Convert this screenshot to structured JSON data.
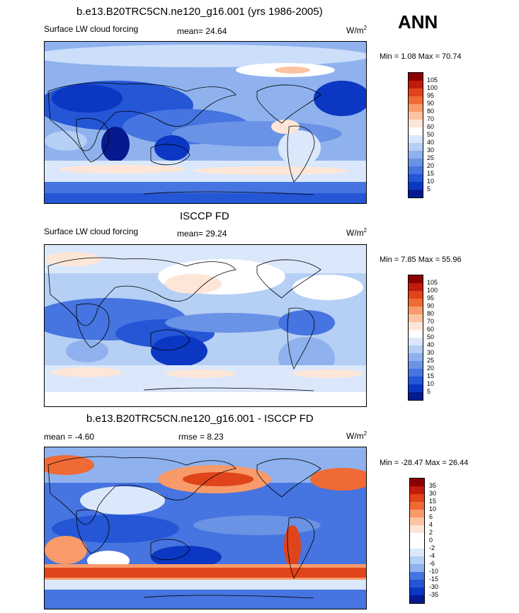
{
  "season": "ANN",
  "panels": [
    {
      "title": "b.e13.B20TRC5CN.ne120_g16.001 (yrs 1986-2005)",
      "left_label": "Surface LW cloud forcing",
      "mid_label": "mean=  24.64",
      "units_base": "W/m",
      "units_exp": "2",
      "minmax": "Min =   1.08 Max =  70.74",
      "levels": [
        "105",
        "100",
        "95",
        "90",
        "80",
        "70",
        "60",
        "50",
        "40",
        "30",
        "25",
        "20",
        "15",
        "10",
        "5"
      ],
      "colors": [
        "#8b0000",
        "#c21b0c",
        "#e0441a",
        "#f06a35",
        "#f89a6a",
        "#fcc3a2",
        "#fde6d8",
        "#ffffff",
        "#dbe8fb",
        "#b5cff5",
        "#8fb2ee",
        "#6a93e6",
        "#4674e0",
        "#2456d6",
        "#0b37c2",
        "#061a8f"
      ]
    },
    {
      "title": "ISCCP FD",
      "left_label": "Surface LW cloud forcing",
      "mid_label": "mean=  29.24",
      "units_base": "W/m",
      "units_exp": "2",
      "minmax": "Min =   7.85 Max =  55.96",
      "levels": [
        "105",
        "100",
        "95",
        "90",
        "80",
        "70",
        "60",
        "50",
        "40",
        "30",
        "25",
        "20",
        "15",
        "10",
        "5"
      ],
      "colors": [
        "#8b0000",
        "#c21b0c",
        "#e0441a",
        "#f06a35",
        "#f89a6a",
        "#fcc3a2",
        "#fde6d8",
        "#ffffff",
        "#dbe8fb",
        "#b5cff5",
        "#8fb2ee",
        "#6a93e6",
        "#4674e0",
        "#2456d6",
        "#0b37c2",
        "#061a8f"
      ]
    },
    {
      "title": "b.e13.B20TRC5CN.ne120_g16.001 - ISCCP FD",
      "left_label": "mean =  -4.60",
      "mid_label": "rmse =   8.23",
      "units_base": "W/m",
      "units_exp": "2",
      "minmax": "Min = -28.47 Max =  26.44",
      "levels": [
        "35",
        "30",
        "15",
        "10",
        "6",
        "4",
        "2",
        "0",
        "-2",
        "-4",
        "-6",
        "-10",
        "-15",
        "-30",
        "-35"
      ],
      "colors": [
        "#8b0000",
        "#c21b0c",
        "#e0441a",
        "#f06a35",
        "#f89a6a",
        "#fcc3a2",
        "#fde6d8",
        "#ffffff",
        "#ffffff",
        "#dbe8fb",
        "#b5cff5",
        "#8fb2ee",
        "#4674e0",
        "#2456d6",
        "#0b37c2",
        "#061a8f"
      ]
    }
  ]
}
